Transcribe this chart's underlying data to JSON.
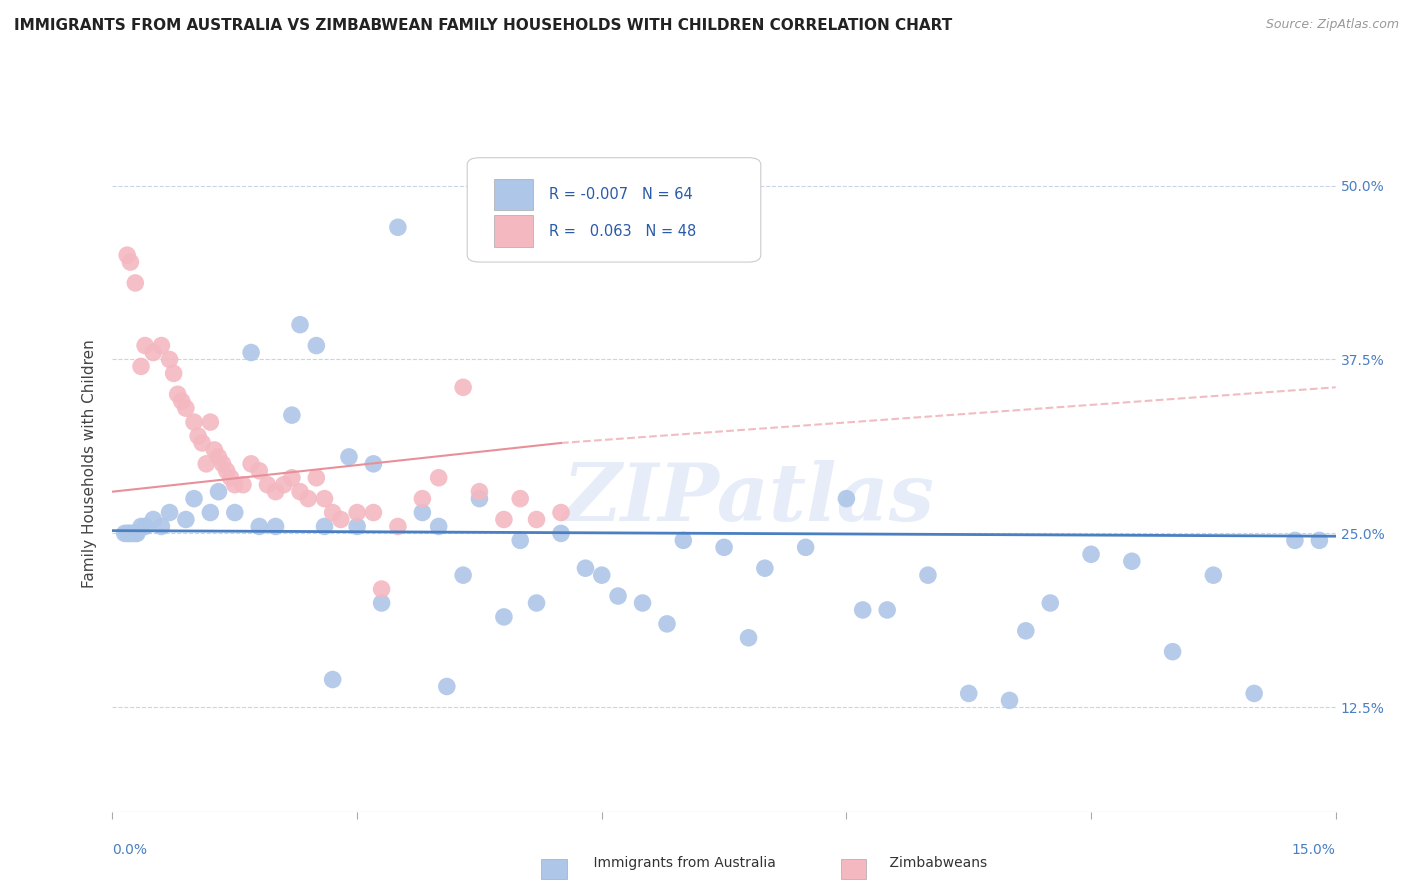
{
  "title": "IMMIGRANTS FROM AUSTRALIA VS ZIMBABWEAN FAMILY HOUSEHOLDS WITH CHILDREN CORRELATION CHART",
  "source": "Source: ZipAtlas.com",
  "ylabel": "Family Households with Children",
  "xlim": [
    0.0,
    15.0
  ],
  "ylim": [
    5.0,
    55.0
  ],
  "yticks": [
    12.5,
    25.0,
    37.5,
    50.0
  ],
  "ytick_labels": [
    "12.5%",
    "25.0%",
    "37.5%",
    "50.0%"
  ],
  "legend_r1": "-0.007",
  "legend_n1": "64",
  "legend_r2": "0.063",
  "legend_n2": "48",
  "blue_color": "#aec6e8",
  "pink_color": "#f4b8c1",
  "blue_line_color": "#4a7fc1",
  "pink_line_color": "#e8909a",
  "grid_color": "#c8d4e8",
  "watermark": "ZIPatlas",
  "blue_scatter_x": [
    3.5,
    2.3,
    2.5,
    1.7,
    2.9,
    1.3,
    1.2,
    0.9,
    0.7,
    0.6,
    0.5,
    0.4,
    0.35,
    0.3,
    0.28,
    0.25,
    0.22,
    0.2,
    0.18,
    0.15,
    1.0,
    1.5,
    1.8,
    2.0,
    2.2,
    2.6,
    3.0,
    3.2,
    3.8,
    4.0,
    4.5,
    5.0,
    5.5,
    6.0,
    6.5,
    7.0,
    7.5,
    8.0,
    8.5,
    9.0,
    9.5,
    10.0,
    10.5,
    11.0,
    11.5,
    12.0,
    12.5,
    13.0,
    13.5,
    14.0,
    14.5,
    14.8,
    6.2,
    7.8,
    4.3,
    5.2,
    5.8,
    4.8,
    3.3,
    6.8,
    9.2,
    11.2,
    4.1,
    2.7
  ],
  "blue_scatter_y": [
    47.0,
    40.0,
    38.5,
    38.0,
    30.5,
    28.0,
    26.5,
    26.0,
    26.5,
    25.5,
    26.0,
    25.5,
    25.5,
    25.0,
    25.0,
    25.0,
    25.0,
    25.0,
    25.0,
    25.0,
    27.5,
    26.5,
    25.5,
    25.5,
    33.5,
    25.5,
    25.5,
    30.0,
    26.5,
    25.5,
    27.5,
    24.5,
    25.0,
    22.0,
    20.0,
    24.5,
    24.0,
    22.5,
    24.0,
    27.5,
    19.5,
    22.0,
    13.5,
    13.0,
    20.0,
    23.5,
    23.0,
    16.5,
    22.0,
    13.5,
    24.5,
    24.5,
    20.5,
    17.5,
    22.0,
    20.0,
    22.5,
    19.0,
    20.0,
    18.5,
    19.5,
    18.0,
    14.0,
    14.5
  ],
  "pink_scatter_x": [
    0.18,
    0.22,
    0.28,
    0.35,
    0.4,
    0.5,
    0.6,
    0.7,
    0.75,
    0.8,
    0.85,
    0.9,
    1.0,
    1.05,
    1.1,
    1.15,
    1.2,
    1.25,
    1.3,
    1.35,
    1.4,
    1.45,
    1.5,
    1.6,
    1.7,
    1.8,
    1.9,
    2.0,
    2.1,
    2.2,
    2.3,
    2.4,
    2.5,
    2.6,
    2.7,
    2.8,
    3.0,
    3.2,
    3.5,
    3.8,
    4.0,
    4.3,
    4.5,
    4.8,
    5.0,
    5.2,
    3.3,
    5.5
  ],
  "pink_scatter_y": [
    45.0,
    44.5,
    43.0,
    37.0,
    38.5,
    38.0,
    38.5,
    37.5,
    36.5,
    35.0,
    34.5,
    34.0,
    33.0,
    32.0,
    31.5,
    30.0,
    33.0,
    31.0,
    30.5,
    30.0,
    29.5,
    29.0,
    28.5,
    28.5,
    30.0,
    29.5,
    28.5,
    28.0,
    28.5,
    29.0,
    28.0,
    27.5,
    29.0,
    27.5,
    26.5,
    26.0,
    26.5,
    26.5,
    25.5,
    27.5,
    29.0,
    35.5,
    28.0,
    26.0,
    27.5,
    26.0,
    21.0,
    26.5
  ],
  "blue_trend_x": [
    0.0,
    15.0
  ],
  "blue_trend_y": [
    25.2,
    24.8
  ],
  "pink_trend_x": [
    0.0,
    5.5
  ],
  "pink_trend_y": [
    28.0,
    31.5
  ]
}
